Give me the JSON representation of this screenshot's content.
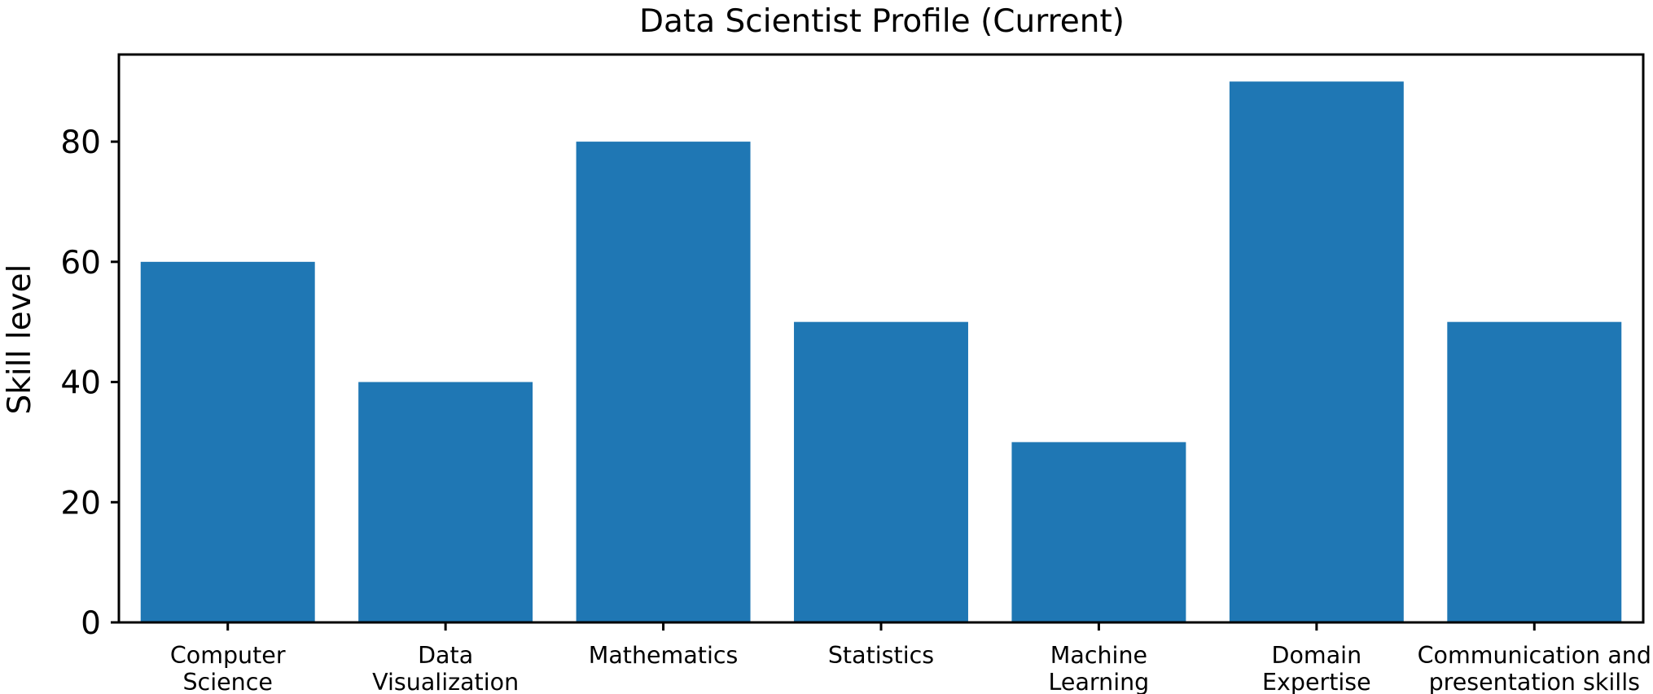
{
  "chart_data": {
    "type": "bar",
    "title": "Data Scientist Profile (Current)",
    "xlabel": "",
    "ylabel": "Skill level",
    "categories": [
      [
        "Computer",
        "Science"
      ],
      [
        "Data",
        "Visualization"
      ],
      [
        "Mathematics"
      ],
      [
        "Statistics"
      ],
      [
        "Machine",
        "Learning"
      ],
      [
        "Domain",
        "Expertise"
      ],
      [
        "Communication and",
        "presentation skills"
      ]
    ],
    "values": [
      60,
      40,
      80,
      50,
      30,
      90,
      50
    ],
    "yticks": [
      0,
      20,
      40,
      60,
      80
    ],
    "ylim": [
      0,
      94.5
    ],
    "bar_color": "#1f77b4",
    "grid": false,
    "legend": "none"
  }
}
